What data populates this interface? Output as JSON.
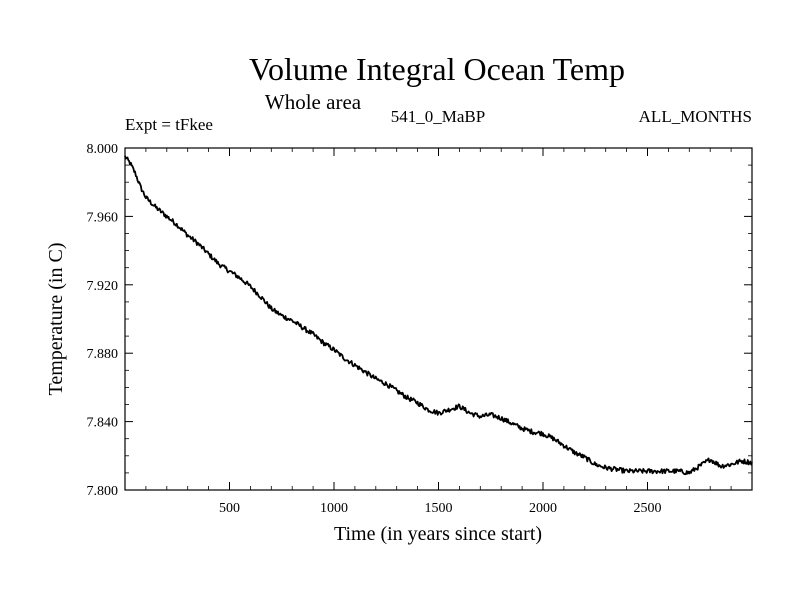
{
  "chart_data": {
    "type": "line",
    "title": "Volume Integral Ocean Temp",
    "subtitle": "Whole area",
    "annotations": {
      "left": "Expt = tFkee",
      "center": "541_0_MaBP",
      "right": "ALL_MONTHS"
    },
    "xlabel": "Time (in years since start)",
    "ylabel": "Temperature (in C)",
    "xlim": [
      0,
      3000
    ],
    "ylim": [
      7.8,
      8.0
    ],
    "x_ticks": [
      500,
      1000,
      1500,
      2000,
      2500
    ],
    "x_tick_labels": [
      "500",
      "1000",
      "1500",
      "2000",
      "2500"
    ],
    "y_ticks": [
      7.8,
      7.84,
      7.88,
      7.92,
      7.96,
      8.0
    ],
    "y_tick_labels": [
      "7.800",
      "7.840",
      "7.880",
      "7.920",
      "7.960",
      "8.000"
    ],
    "grid": false,
    "colors": {
      "line": "#000000",
      "axes": "#000000",
      "background": "#ffffff"
    },
    "series": [
      {
        "x": [
          0,
          25,
          50,
          75,
          100,
          150,
          200,
          250,
          300,
          350,
          400,
          450,
          500,
          550,
          600,
          650,
          700,
          750,
          800,
          850,
          900,
          950,
          1000,
          1050,
          1100,
          1150,
          1200,
          1250,
          1300,
          1350,
          1400,
          1450,
          1500,
          1550,
          1600,
          1650,
          1700,
          1750,
          1800,
          1850,
          1900,
          1950,
          2000,
          2050,
          2100,
          2150,
          2200,
          2250,
          2300,
          2350,
          2400,
          2450,
          2500,
          2550,
          2600,
          2650,
          2700,
          2750,
          2800,
          2850,
          2900,
          2950,
          3000
        ],
        "values": [
          7.995,
          7.991,
          7.985,
          7.977,
          7.971,
          7.965,
          7.96,
          7.955,
          7.949,
          7.944,
          7.938,
          7.932,
          7.928,
          7.924,
          7.919,
          7.913,
          7.906,
          7.902,
          7.899,
          7.895,
          7.891,
          7.886,
          7.882,
          7.877,
          7.873,
          7.869,
          7.865,
          7.862,
          7.858,
          7.854,
          7.851,
          7.847,
          7.845,
          7.847,
          7.849,
          7.845,
          7.843,
          7.844,
          7.842,
          7.839,
          7.836,
          7.834,
          7.833,
          7.83,
          7.826,
          7.822,
          7.819,
          7.815,
          7.813,
          7.812,
          7.811,
          7.811,
          7.811,
          7.811,
          7.811,
          7.811,
          7.81,
          7.814,
          7.818,
          7.814,
          7.815,
          7.817,
          7.816
        ]
      }
    ]
  }
}
